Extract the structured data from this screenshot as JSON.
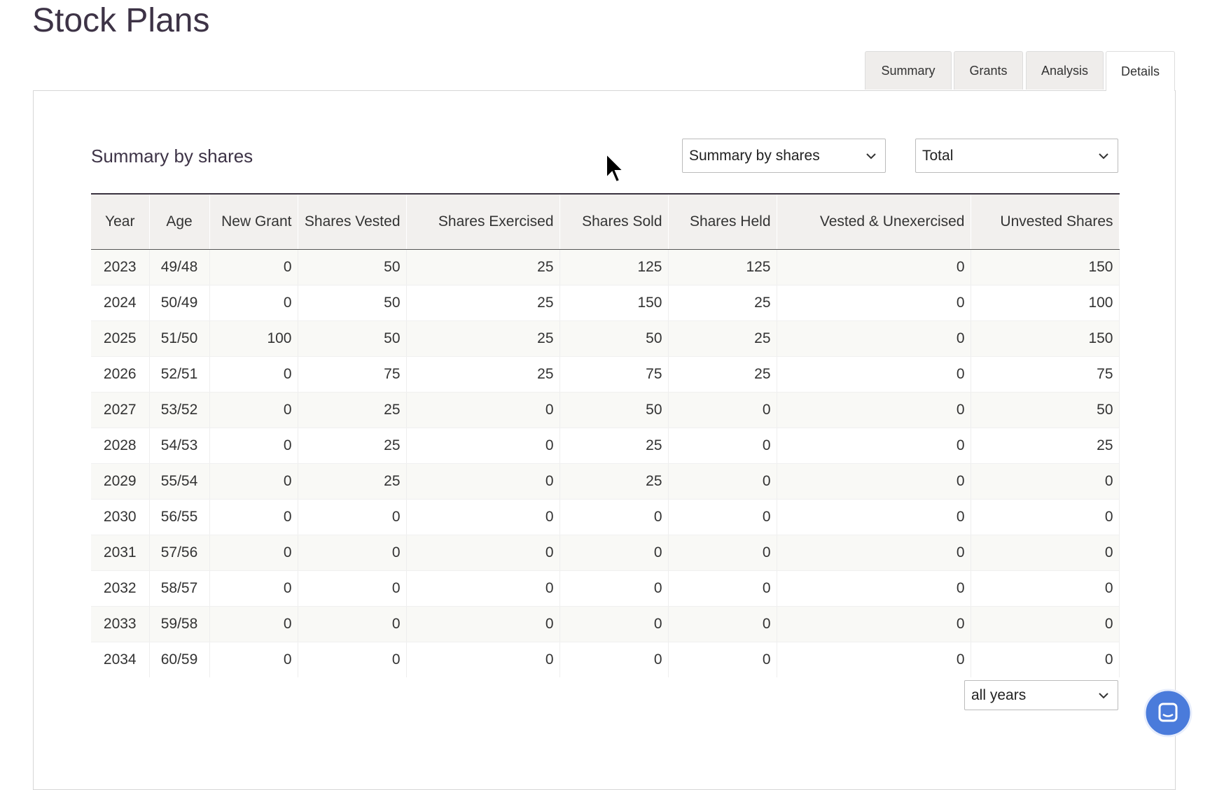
{
  "page_title": "Stock Plans",
  "tabs": [
    "Summary",
    "Grants",
    "Analysis",
    "Details"
  ],
  "section_title": "Summary by shares",
  "view_select": "Summary by shares",
  "scope_select": "Total",
  "table": {
    "headers": [
      "Year",
      "Age",
      "New Grant",
      "Shares Vested",
      "Shares Exercised",
      "Shares Sold",
      "Shares Held",
      "Vested & Unexercised",
      "Unvested Shares"
    ],
    "rows": [
      [
        2023,
        "49/48",
        0,
        50,
        25,
        125,
        125,
        0,
        150
      ],
      [
        2024,
        "50/49",
        0,
        50,
        25,
        150,
        25,
        0,
        100
      ],
      [
        2025,
        "51/50",
        100,
        50,
        25,
        50,
        25,
        0,
        150
      ],
      [
        2026,
        "52/51",
        0,
        75,
        25,
        75,
        25,
        0,
        75
      ],
      [
        2027,
        "53/52",
        0,
        25,
        0,
        50,
        0,
        0,
        50
      ],
      [
        2028,
        "54/53",
        0,
        25,
        0,
        25,
        0,
        0,
        25
      ],
      [
        2029,
        "55/54",
        0,
        25,
        0,
        25,
        0,
        0,
        0
      ],
      [
        2030,
        "56/55",
        0,
        0,
        0,
        0,
        0,
        0,
        0
      ],
      [
        2031,
        "57/56",
        0,
        0,
        0,
        0,
        0,
        0,
        0
      ],
      [
        2032,
        "58/57",
        0,
        0,
        0,
        0,
        0,
        0,
        0
      ],
      [
        2033,
        "59/58",
        0,
        0,
        0,
        0,
        0,
        0,
        0
      ],
      [
        2034,
        "60/59",
        0,
        0,
        0,
        0,
        0,
        0,
        0
      ]
    ]
  },
  "years_select": "all years"
}
